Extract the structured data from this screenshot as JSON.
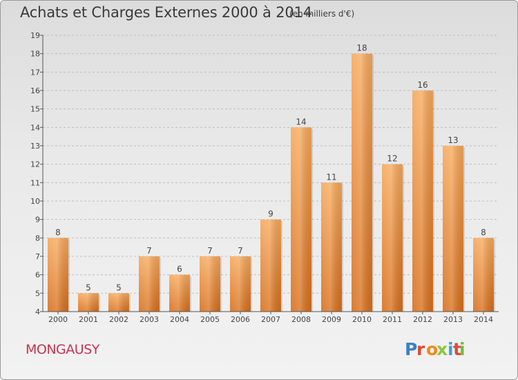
{
  "header": {
    "title": "Achats et Charges Externes 2000 à 2014",
    "subtitle": "(en milliers d'€)"
  },
  "footer": {
    "commune": "MONGAUSY",
    "logo_text": "Proxiti"
  },
  "colors": {
    "bar_light": "#f7a95c",
    "bar_dark": "#d76e1b",
    "axis": "#555555",
    "grid": "#bdbdbd",
    "commune_text": "#c8334f",
    "logo_letters": [
      "#3a7fc4",
      "#e24a32",
      "#f08a1e",
      "#8cc63f",
      "#3aa0d8",
      "#e24a32",
      "#6bbf3b"
    ]
  },
  "chart_data": {
    "type": "bar",
    "title": "Achats et Charges Externes 2000 à 2014",
    "subtitle": "(en milliers d'€)",
    "categories": [
      "2000",
      "2001",
      "2002",
      "2003",
      "2004",
      "2005",
      "2006",
      "2007",
      "2008",
      "2009",
      "2010",
      "2011",
      "2012",
      "2013",
      "2014"
    ],
    "values": [
      8,
      5,
      5,
      7,
      6,
      7,
      7,
      9,
      14,
      11,
      18,
      12,
      16,
      13,
      8
    ],
    "value_labels": [
      "8",
      "5",
      "5",
      "7",
      "6",
      "7",
      "7",
      "9",
      "14",
      "11",
      "18",
      "12",
      "16",
      "13",
      "8"
    ],
    "ylim": [
      4,
      19
    ],
    "yticks": [
      "4",
      "5",
      "6",
      "7",
      "8",
      "9",
      "10",
      "11",
      "12",
      "13",
      "14",
      "15",
      "16",
      "17",
      "18",
      "19"
    ],
    "grid": true,
    "xlabel": "",
    "ylabel": ""
  }
}
